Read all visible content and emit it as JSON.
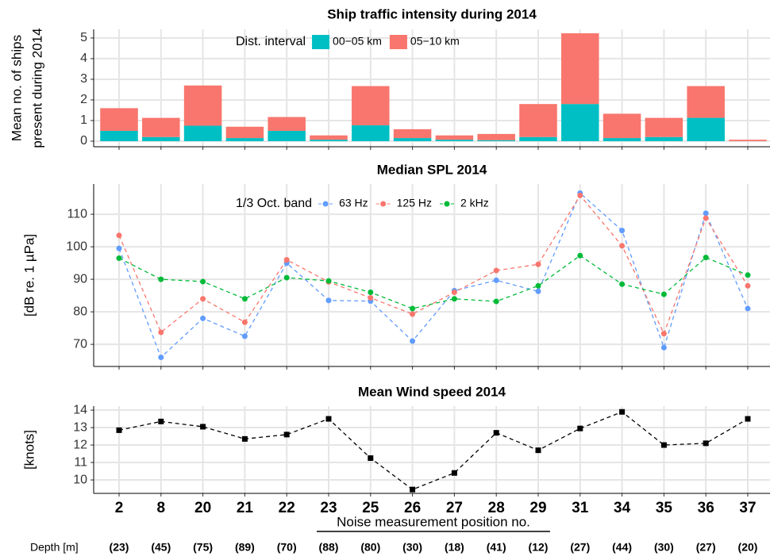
{
  "chart_data": [
    {
      "type": "bar",
      "stacked": true,
      "title": "Ship traffic intensity during 2014",
      "ylabel": [
        "Mean no. of ships",
        "present during 2014"
      ],
      "categories": [
        "2",
        "8",
        "20",
        "21",
        "22",
        "23",
        "25",
        "26",
        "27",
        "28",
        "29",
        "31",
        "34",
        "35",
        "36",
        "37"
      ],
      "x_tick_labels": false,
      "legend_title": "Dist. interval",
      "series": [
        {
          "name": "00−05 km",
          "color": "#00bfc4",
          "values": [
            0.5,
            0.2,
            0.75,
            0.15,
            0.5,
            0.07,
            0.77,
            0.15,
            0.07,
            0.05,
            0.2,
            1.8,
            0.15,
            0.2,
            1.13,
            0.0
          ]
        },
        {
          "name": "05−10 km",
          "color": "#f8766d",
          "values": [
            1.1,
            0.93,
            1.95,
            0.55,
            0.67,
            0.21,
            1.9,
            0.43,
            0.21,
            0.3,
            1.6,
            3.43,
            1.18,
            0.93,
            1.54,
            0.07
          ]
        }
      ],
      "ylim": [
        -0.27,
        5.42
      ],
      "yticks": [
        0,
        1,
        2,
        3,
        4,
        5
      ],
      "grid": true
    },
    {
      "type": "line",
      "title": "Median SPL 2014",
      "ylabel": [
        "[dB re. 1 µPa]"
      ],
      "categories": [
        "2",
        "8",
        "20",
        "21",
        "22",
        "23",
        "25",
        "26",
        "27",
        "28",
        "29",
        "31",
        "34",
        "35",
        "36",
        "37"
      ],
      "x_tick_labels": false,
      "legend_title": "1/3 Oct. band",
      "marker": "circle",
      "dashed": true,
      "series": [
        {
          "name": "63 Hz",
          "color": "#619cff",
          "values": [
            99.5,
            66,
            78,
            72.5,
            95,
            83.5,
            83.3,
            71,
            86.5,
            89.7,
            86.3,
            116.5,
            105,
            69,
            110.3,
            81
          ]
        },
        {
          "name": "125 Hz",
          "color": "#f8766d",
          "values": [
            103.5,
            73.7,
            84,
            76.8,
            96,
            89.2,
            84.3,
            79.3,
            86,
            92.7,
            94.6,
            115.8,
            100.3,
            73.3,
            108.8,
            88
          ]
        },
        {
          "name": "2 kHz",
          "color": "#00ba38",
          "values": [
            96.5,
            90,
            89.3,
            84,
            90.5,
            89.5,
            86,
            81,
            84,
            83.2,
            88,
            97.3,
            88.5,
            85.4,
            96.7,
            91.3
          ]
        }
      ],
      "ylim": [
        63.2,
        119.3
      ],
      "yticks": [
        70,
        80,
        90,
        100,
        110
      ],
      "grid": true
    },
    {
      "type": "line",
      "title": "Mean Wind speed 2014",
      "ylabel": [
        "[knots]"
      ],
      "categories": [
        "2",
        "8",
        "20",
        "21",
        "22",
        "23",
        "25",
        "26",
        "27",
        "28",
        "29",
        "31",
        "34",
        "35",
        "36",
        "37"
      ],
      "x_tick_labels": true,
      "xlabel": "Noise measurement position no.",
      "marker": "square",
      "dashed": true,
      "series": [
        {
          "color": "#000000",
          "values": [
            12.85,
            13.35,
            13.05,
            12.35,
            12.6,
            13.5,
            11.25,
            9.45,
            10.4,
            12.7,
            11.7,
            12.95,
            13.9,
            12,
            12.1,
            13.5
          ]
        }
      ],
      "ylim": [
        9.23,
        14.23
      ],
      "yticks": [
        10,
        11,
        12,
        13,
        14
      ],
      "grid": true
    }
  ],
  "depth": {
    "label": "Depth  [m]",
    "values": [
      "(23)",
      "(45)",
      "(75)",
      "(89)",
      "(70)",
      "(88)",
      "(80)",
      "(30)",
      "(18)",
      "(41)",
      "(12)",
      "(27)",
      "(44)",
      "(30)",
      "(27)",
      "(20)"
    ]
  }
}
